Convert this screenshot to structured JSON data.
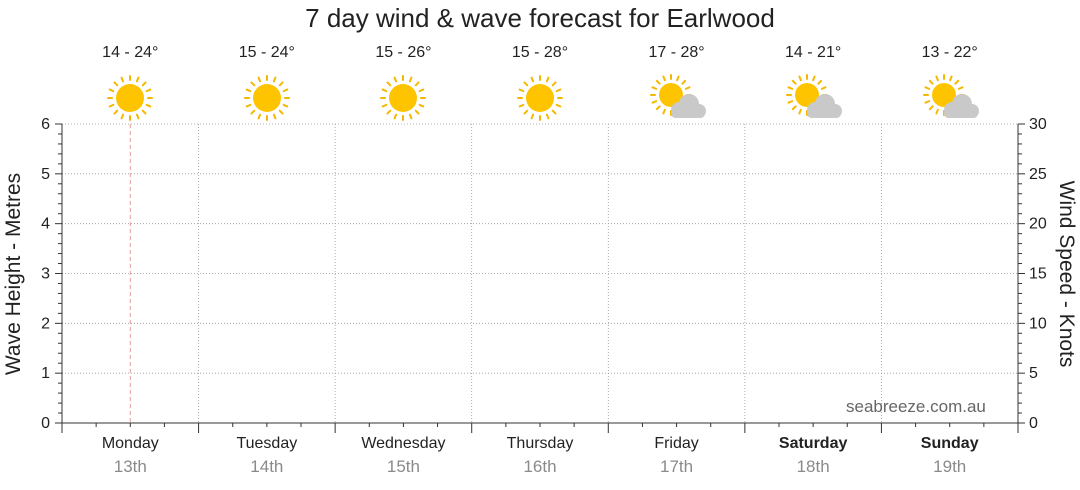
{
  "chart_data": {
    "type": "line",
    "title": "7 day wind & wave forecast for Earlwood",
    "ylabel_left": "Wave Height - Metres",
    "ylabel_right": "Wind Speed - Knots",
    "ylim_left": [
      0,
      6
    ],
    "ylim_right": [
      0,
      30
    ],
    "yticks_left": [
      "0",
      "1",
      "2",
      "3",
      "4",
      "5",
      "6"
    ],
    "yticks_right": [
      "0",
      "5",
      "10",
      "15",
      "20",
      "25",
      "30"
    ],
    "grid": true,
    "series": [],
    "days": [
      {
        "name": "Monday",
        "date": "13th",
        "temp": "14 - 24°",
        "icon": "sun-icon",
        "weekend": false
      },
      {
        "name": "Tuesday",
        "date": "14th",
        "temp": "15 - 24°",
        "icon": "sun-icon",
        "weekend": false
      },
      {
        "name": "Wednesday",
        "date": "15th",
        "temp": "15 - 26°",
        "icon": "sun-icon",
        "weekend": false
      },
      {
        "name": "Thursday",
        "date": "16th",
        "temp": "15 - 28°",
        "icon": "sun-icon",
        "weekend": false
      },
      {
        "name": "Friday",
        "date": "17th",
        "temp": "17 - 28°",
        "icon": "partly-cloudy-icon",
        "weekend": false
      },
      {
        "name": "Saturday",
        "date": "18th",
        "temp": "14 - 21°",
        "icon": "partly-cloudy-icon",
        "weekend": true
      },
      {
        "name": "Sunday",
        "date": "19th",
        "temp": "13 - 22°",
        "icon": "partly-cloudy-icon",
        "weekend": true
      }
    ],
    "current_day_marker": "Monday"
  },
  "watermark": "seabreeze.com.au",
  "colors": {
    "sun": "#FFC400",
    "sun_rays": "#F5B800",
    "cloud": "#C9C9C9",
    "grid": "#999999",
    "now_marker": "#E89A9A",
    "date_text": "#8A8A8A"
  }
}
